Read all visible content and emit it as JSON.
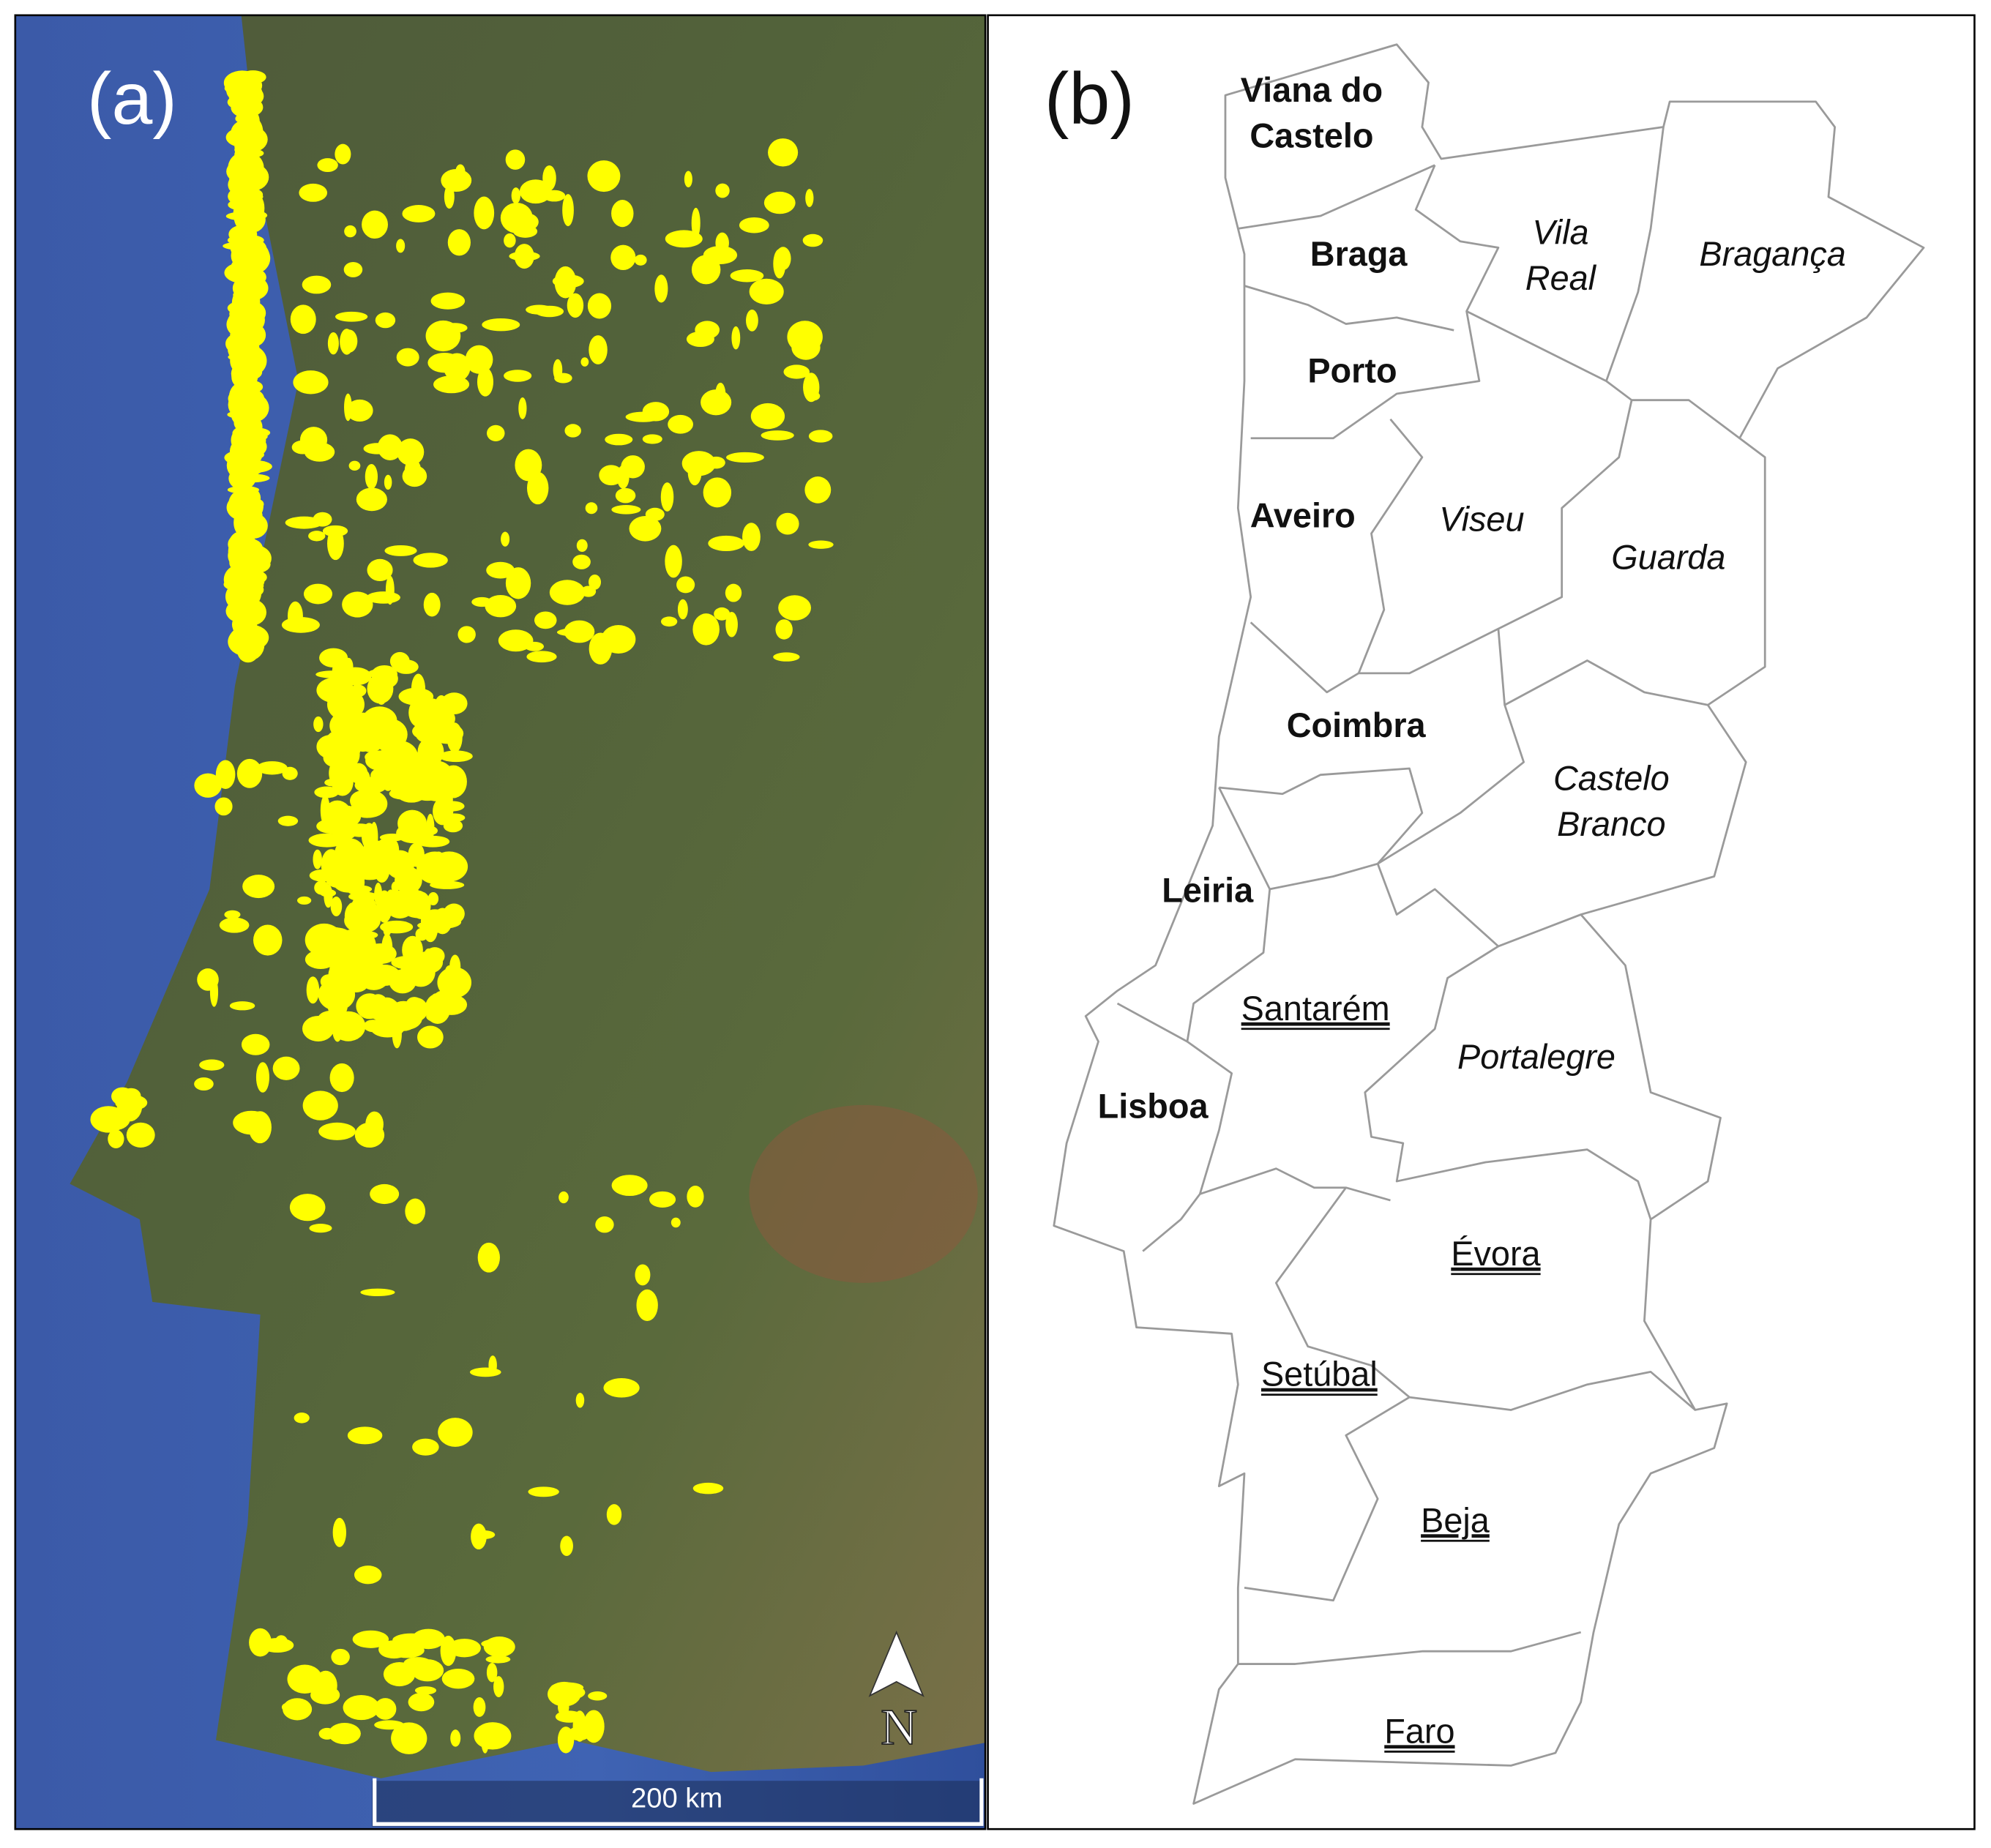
{
  "panels": {
    "a": {
      "label": "(a)",
      "north": "N",
      "scale_bar": "200 km"
    },
    "b": {
      "label": "(b)",
      "districts": [
        {
          "lines": [
            "Viana do",
            "Castelo"
          ],
          "style": "bold"
        },
        {
          "lines": [
            "Braga"
          ],
          "style": "bold"
        },
        {
          "lines": [
            "Vila",
            "Real"
          ],
          "style": "italic"
        },
        {
          "lines": [
            "Bragança"
          ],
          "style": "italic"
        },
        {
          "lines": [
            "Porto"
          ],
          "style": "bold"
        },
        {
          "lines": [
            "Aveiro"
          ],
          "style": "bold"
        },
        {
          "lines": [
            "Viseu"
          ],
          "style": "italic"
        },
        {
          "lines": [
            "Guarda"
          ],
          "style": "italic"
        },
        {
          "lines": [
            "Coimbra"
          ],
          "style": "bold"
        },
        {
          "lines": [
            "Castelo",
            "Branco"
          ],
          "style": "italic"
        },
        {
          "lines": [
            "Leiria"
          ],
          "style": "bold"
        },
        {
          "lines": [
            "Santarém"
          ],
          "style": "underline"
        },
        {
          "lines": [
            "Portalegre"
          ],
          "style": "italic"
        },
        {
          "lines": [
            "Lisboa"
          ],
          "style": "bold"
        },
        {
          "lines": [
            "Évora"
          ],
          "style": "underline"
        },
        {
          "lines": [
            "Setúbal"
          ],
          "style": "underline"
        },
        {
          "lines": [
            "Beja"
          ],
          "style": "underline"
        },
        {
          "lines": [
            "Faro"
          ],
          "style": "underline"
        }
      ]
    }
  }
}
